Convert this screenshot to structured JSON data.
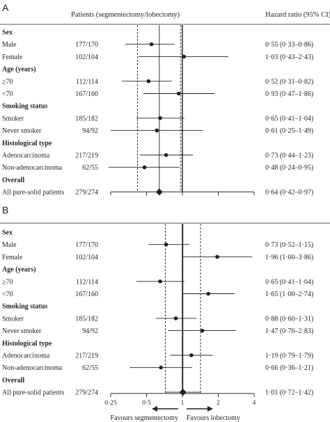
{
  "chart_data": [
    {
      "type": "forest",
      "panel": "A",
      "columns": {
        "patients": "Patients (segmentectomy/lobectomy)",
        "hr": "Hazard ratio (95% CI)"
      },
      "xscale": "log2",
      "xlim": [
        0.25,
        4
      ],
      "reference_line": 1,
      "overall_ci_lines": [
        0.42,
        0.97
      ],
      "overall_point_line": 0.64,
      "rows": [
        {
          "kind": "section",
          "label": "Sex"
        },
        {
          "kind": "item",
          "label": "Male",
          "patients": "177/170",
          "hr": 0.55,
          "lo": 0.33,
          "hi": 0.86,
          "hr_text": "0·55 (0·33–0·86)"
        },
        {
          "kind": "item",
          "label": "Female",
          "patients": "102/104",
          "hr": 1.03,
          "lo": 0.43,
          "hi": 2.43,
          "hr_text": "1·03 (0·43–2·43)"
        },
        {
          "kind": "section",
          "label": "Age (years)"
        },
        {
          "kind": "item",
          "label": "≥70",
          "patients": "112/114",
          "hr": 0.52,
          "lo": 0.31,
          "hi": 0.82,
          "hr_text": "0·52 (0·31–0·82)"
        },
        {
          "kind": "item",
          "label": "<70",
          "patients": "167/160",
          "hr": 0.93,
          "lo": 0.47,
          "hi": 1.86,
          "hr_text": "0·93 (0·47–1·86)"
        },
        {
          "kind": "section",
          "label": "Smoking status"
        },
        {
          "kind": "item",
          "label": "Smoker",
          "patients": "185/182",
          "hr": 0.65,
          "lo": 0.41,
          "hi": 1.04,
          "hr_text": "0·65 (0·41–1·04)"
        },
        {
          "kind": "item",
          "label": "Never smoker",
          "patients": "94/92",
          "hr": 0.61,
          "lo": 0.25,
          "hi": 1.49,
          "hr_text": "0·61 (0·25–1·49)"
        },
        {
          "kind": "section",
          "label": "Histological type"
        },
        {
          "kind": "item",
          "label": "Adenocarcinoma",
          "patients": "217/219",
          "hr": 0.73,
          "lo": 0.44,
          "hi": 1.23,
          "hr_text": "0·73 (0·44–1·23)"
        },
        {
          "kind": "item",
          "label": "Non-adenocarcinoma",
          "patients": "62/55",
          "hr": 0.48,
          "lo": 0.24,
          "hi": 0.95,
          "hr_text": "0·48 (0·24–0·95)"
        },
        {
          "kind": "section",
          "label": "Overall"
        },
        {
          "kind": "item",
          "label": "All pure-solid patients",
          "patients": "279/274",
          "hr": 0.64,
          "lo": 0.42,
          "hi": 0.97,
          "hr_text": "0·64 (0·42–0·97)",
          "overall": true
        }
      ]
    },
    {
      "type": "forest",
      "panel": "B",
      "xscale": "log2",
      "xlim": [
        0.25,
        4
      ],
      "reference_line": 1,
      "overall_ci_lines": [
        0.72,
        1.42
      ],
      "overall_point_line": 1.01,
      "xticks": [
        "0·25",
        "0·5",
        "1",
        "2",
        "4"
      ],
      "xlabel_left": "Favours segmentectomy",
      "xlabel_right": "Favours lobectomy",
      "rows": [
        {
          "kind": "section",
          "label": "Sex"
        },
        {
          "kind": "item",
          "label": "Male",
          "patients": "177/170",
          "hr": 0.73,
          "lo": 0.52,
          "hi": 1.15,
          "hr_text": "0·73 (0·52–1·15)"
        },
        {
          "kind": "item",
          "label": "Female",
          "patients": "102/104",
          "hr": 1.96,
          "lo": 1.0,
          "hi": 3.86,
          "hr_text": "1·96 (1·00–3·86)"
        },
        {
          "kind": "section",
          "label": "Age (years)"
        },
        {
          "kind": "item",
          "label": "≥70",
          "patients": "112/114",
          "hr": 0.65,
          "lo": 0.41,
          "hi": 1.04,
          "hr_text": "0·65 (0·41–1·04)"
        },
        {
          "kind": "item",
          "label": "<70",
          "patients": "167/160",
          "hr": 1.65,
          "lo": 1.0,
          "hi": 2.74,
          "hr_text": "1·65 (1·00–2·74)"
        },
        {
          "kind": "section",
          "label": "Smoking status"
        },
        {
          "kind": "item",
          "label": "Smoker",
          "patients": "185/182",
          "hr": 0.88,
          "lo": 0.6,
          "hi": 1.31,
          "hr_text": "0·88 (0·60–1·31)"
        },
        {
          "kind": "item",
          "label": "Never smoker",
          "patients": "94/92",
          "hr": 1.47,
          "lo": 0.76,
          "hi": 2.83,
          "hr_text": "1·47 (0·76–2·83)"
        },
        {
          "kind": "section",
          "label": "Histological type"
        },
        {
          "kind": "item",
          "label": "Adenocarcinoma",
          "patients": "217/219",
          "hr": 1.19,
          "lo": 0.79,
          "hi": 1.79,
          "hr_text": "1·19 (0·79–1·79)"
        },
        {
          "kind": "item",
          "label": "Non-adenocarcinoma",
          "patients": "62/55",
          "hr": 0.66,
          "lo": 0.36,
          "hi": 1.21,
          "hr_text": "0·66 (0·36–1·21)"
        },
        {
          "kind": "section",
          "label": "Overall"
        },
        {
          "kind": "item",
          "label": "All pure-solid patients",
          "patients": "279/274",
          "hr": 1.01,
          "lo": 0.72,
          "hi": 1.42,
          "hr_text": "1·01 (0·72–1·42)",
          "overall": true
        }
      ]
    }
  ]
}
